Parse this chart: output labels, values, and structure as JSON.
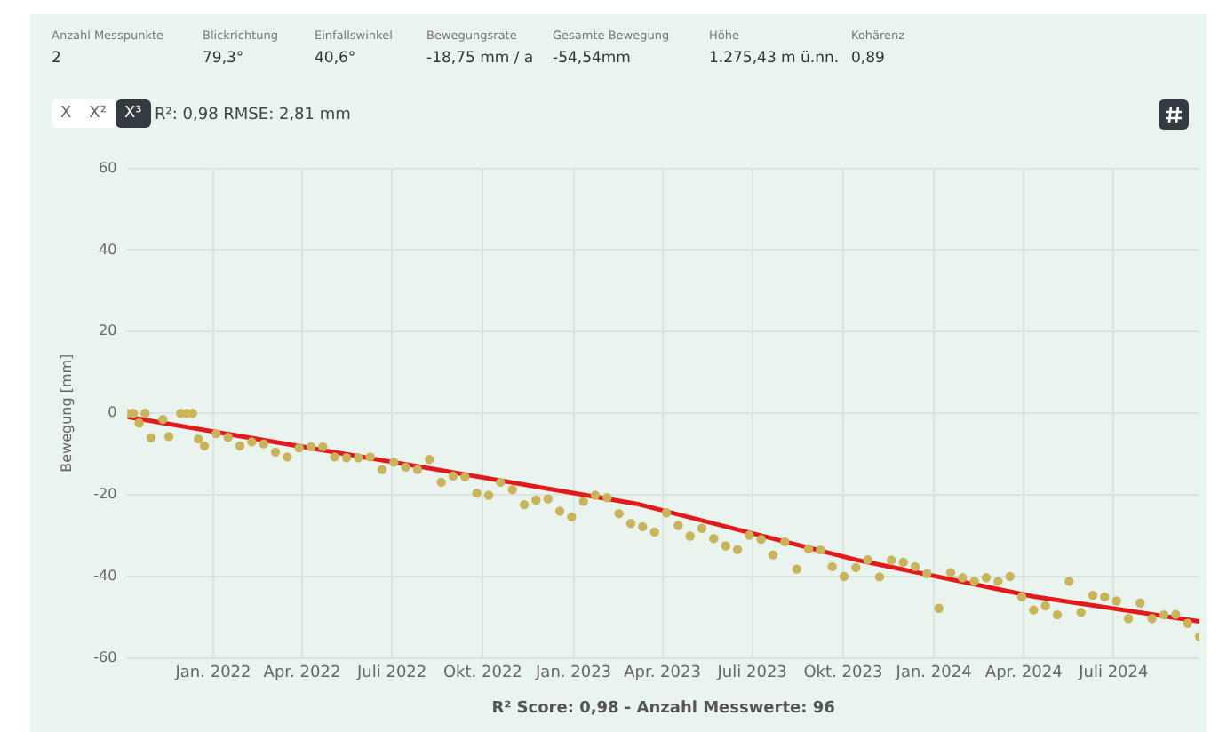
{
  "chart_data": {
    "type": "scatter",
    "xlabel": "R² Score: 0,98 - Anzahl Messwerte: 96",
    "ylabel": "Bewegung [mm]",
    "annotations": [
      "Anzahl Messpunkte",
      "2",
      "Blickrichtung",
      "79,3°",
      "Einfallswinkel",
      "40,6°",
      "Bewegungsrate",
      "-18,75 mm / a",
      "Gesamte Bewegung",
      "-54,54mm",
      "Höhe",
      "1.275,43 m ü.nn.",
      "Kohärenz",
      "0,89",
      "X",
      "X²",
      "X³",
      "R²: 0,98 RMSE: 2,81 mm"
    ],
    "xlim": [
      "2021-10-06",
      "2024-09-26"
    ],
    "xticks": [
      {
        "value": "2022-01-01",
        "label": "Jan. 2022"
      },
      {
        "value": "2022-04-01",
        "label": "Apr. 2022"
      },
      {
        "value": "2022-07-01",
        "label": "Juli 2022"
      },
      {
        "value": "2022-10-01",
        "label": "Okt. 2022"
      },
      {
        "value": "2023-01-01",
        "label": "Jan. 2023"
      },
      {
        "value": "2023-04-01",
        "label": "Apr. 2023"
      },
      {
        "value": "2023-07-01",
        "label": "Juli 2023"
      },
      {
        "value": "2023-10-01",
        "label": "Okt. 2023"
      },
      {
        "value": "2024-01-01",
        "label": "Jan. 2024"
      },
      {
        "value": "2024-04-01",
        "label": "Apr. 2024"
      },
      {
        "value": "2024-07-01",
        "label": "Juli 2024"
      }
    ],
    "ylim": [
      -60,
      60
    ],
    "yticks": [
      -60,
      -40,
      -20,
      0,
      20,
      40,
      60
    ],
    "grid": true,
    "legend": false,
    "marker": "circle",
    "series": [
      {
        "type": "scatter",
        "color": "#c9b45c",
        "x": [
          "2021-10-06",
          "2021-10-12",
          "2021-10-18",
          "2021-10-24",
          "2021-10-30",
          "2021-11-11",
          "2021-11-17",
          "2021-11-29",
          "2021-12-05",
          "2021-12-11",
          "2021-12-17",
          "2021-12-23",
          "2022-01-04",
          "2022-01-16",
          "2022-01-28",
          "2022-02-09",
          "2022-02-21",
          "2022-03-05",
          "2022-03-17",
          "2022-03-29",
          "2022-04-10",
          "2022-04-22",
          "2022-05-04",
          "2022-05-16",
          "2022-05-28",
          "2022-06-09",
          "2022-06-21",
          "2022-07-03",
          "2022-07-15",
          "2022-07-27",
          "2022-08-08",
          "2022-08-20",
          "2022-09-01",
          "2022-09-13",
          "2022-09-25",
          "2022-10-07",
          "2022-10-19",
          "2022-10-31",
          "2022-11-12",
          "2022-11-24",
          "2022-12-06",
          "2022-12-18",
          "2022-12-30",
          "2023-01-11",
          "2023-01-23",
          "2023-02-04",
          "2023-02-16",
          "2023-02-28",
          "2023-03-12",
          "2023-03-24",
          "2023-04-05",
          "2023-04-17",
          "2023-04-29",
          "2023-05-11",
          "2023-05-23",
          "2023-06-04",
          "2023-06-16",
          "2023-06-28",
          "2023-07-10",
          "2023-07-22",
          "2023-08-03",
          "2023-08-15",
          "2023-08-27",
          "2023-09-08",
          "2023-09-20",
          "2023-10-02",
          "2023-10-14",
          "2023-10-26",
          "2023-11-07",
          "2023-11-19",
          "2023-12-01",
          "2023-12-13",
          "2023-12-25",
          "2024-01-06",
          "2024-01-18",
          "2024-01-30",
          "2024-02-11",
          "2024-02-23",
          "2024-03-06",
          "2024-03-18",
          "2024-03-30",
          "2024-04-11",
          "2024-04-23",
          "2024-05-05",
          "2024-05-17",
          "2024-05-29",
          "2024-06-10",
          "2024-06-22",
          "2024-07-04",
          "2024-07-16",
          "2024-07-28",
          "2024-08-09",
          "2024-08-21",
          "2024-09-02",
          "2024-09-14",
          "2024-09-26"
        ],
        "values": [
          0,
          0,
          -2.4,
          0,
          -6,
          -1.5,
          -5.7,
          0,
          0,
          0,
          -6.3,
          -8,
          -5,
          -5.9,
          -8,
          -7,
          -7.5,
          -9.5,
          -10.7,
          -8.5,
          -8.2,
          -8.2,
          -10.7,
          -10.9,
          -10.9,
          -10.7,
          -13.8,
          -12,
          -13.2,
          -13.8,
          -11.3,
          -16.9,
          -15.4,
          -15.6,
          -19.6,
          -20.1,
          -16.9,
          -18.7,
          -22.4,
          -21.3,
          -21,
          -24,
          -25.4,
          -21.6,
          -20.1,
          -20.7,
          -24.6,
          -27,
          -27.8,
          -29.1,
          -24.4,
          -27.5,
          -30.1,
          -28.2,
          -30.7,
          -32.5,
          -33.4,
          -29.9,
          -30.9,
          -34.7,
          -31.5,
          -38.2,
          -33.2,
          -33.5,
          -37.6,
          -40,
          -37.8,
          -35.9,
          -40.1,
          -36,
          -36.5,
          -37.6,
          -39.3,
          -47.8,
          -39,
          -40.3,
          -41.2,
          -40.3,
          -41.2,
          -40,
          -45,
          -48.2,
          -47.2,
          -49.4,
          -41.2,
          -48.8,
          -44.6,
          -45,
          -46,
          -50.3,
          -46.5,
          -50.3,
          -49.4,
          -49.3,
          -51.5,
          -54.7
        ]
      },
      {
        "type": "line",
        "marker": "none",
        "color": "#e3191c",
        "x": [
          "2021-10-06",
          "2022-07-15",
          "2023-03-06",
          "2023-10-14",
          "2024-04-11",
          "2024-09-26"
        ],
        "values": [
          -0.9,
          -12.5,
          -22.2,
          -35.9,
          -44.9,
          -51
        ]
      }
    ]
  }
}
